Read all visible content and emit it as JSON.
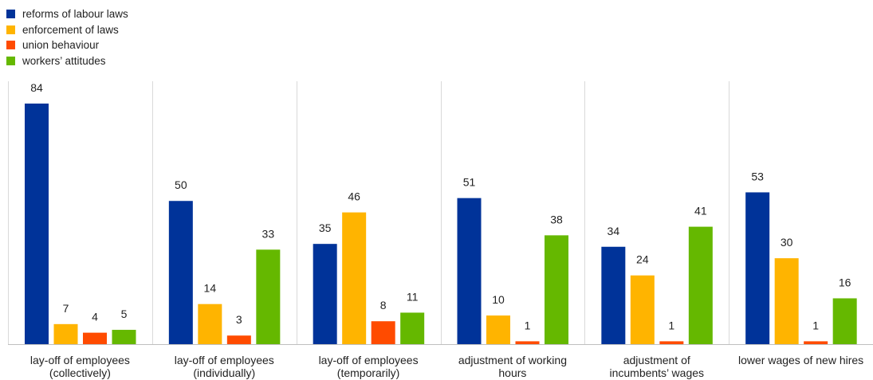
{
  "chart_data": {
    "type": "bar",
    "categories": [
      [
        "lay-off of employees",
        "(collectively)"
      ],
      [
        "lay-off of employees",
        "(individually)"
      ],
      [
        "lay-off of employees",
        "(temporarily)"
      ],
      [
        "adjustment of working",
        "hours"
      ],
      [
        "adjustment of",
        "incumbents’ wages"
      ],
      [
        "lower wages of new hires"
      ]
    ],
    "series": [
      {
        "name": "reforms of labour laws",
        "color": "#003399",
        "values": [
          84,
          50,
          35,
          51,
          34,
          53
        ]
      },
      {
        "name": "enforcement of laws",
        "color": "#FFB400",
        "values": [
          7,
          14,
          46,
          10,
          24,
          30
        ]
      },
      {
        "name": "union behaviour",
        "color": "#FF4B00",
        "values": [
          4,
          3,
          8,
          1,
          1,
          1
        ]
      },
      {
        "name": "workers’ attitudes",
        "color": "#65B800",
        "values": [
          5,
          33,
          11,
          38,
          41,
          16
        ]
      }
    ],
    "ylim": [
      0,
      84
    ],
    "grid": false,
    "legend": "top-left"
  }
}
